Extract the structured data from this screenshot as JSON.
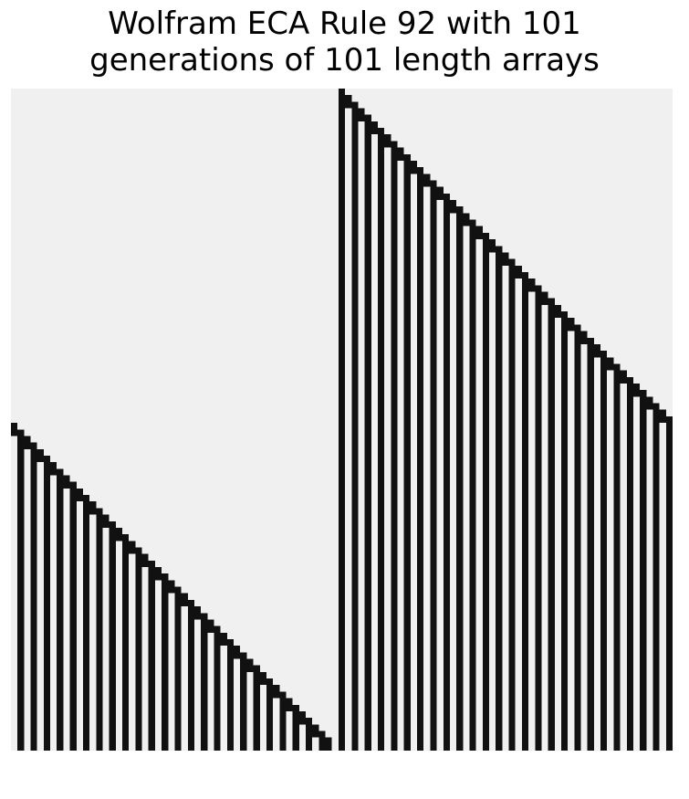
{
  "figure": {
    "title_line1": "Wolfram ECA Rule 92 with 101",
    "title_line2": "generations of 101 length arrays"
  },
  "automaton": {
    "rule": 92,
    "generations": 101,
    "width": 101,
    "initial_seed": "single live cell at center",
    "boundary": "periodic"
  },
  "colors": {
    "dead": "#f0f0f0",
    "alive": "#111111",
    "background": "#ffffff",
    "title": "#000000"
  }
}
